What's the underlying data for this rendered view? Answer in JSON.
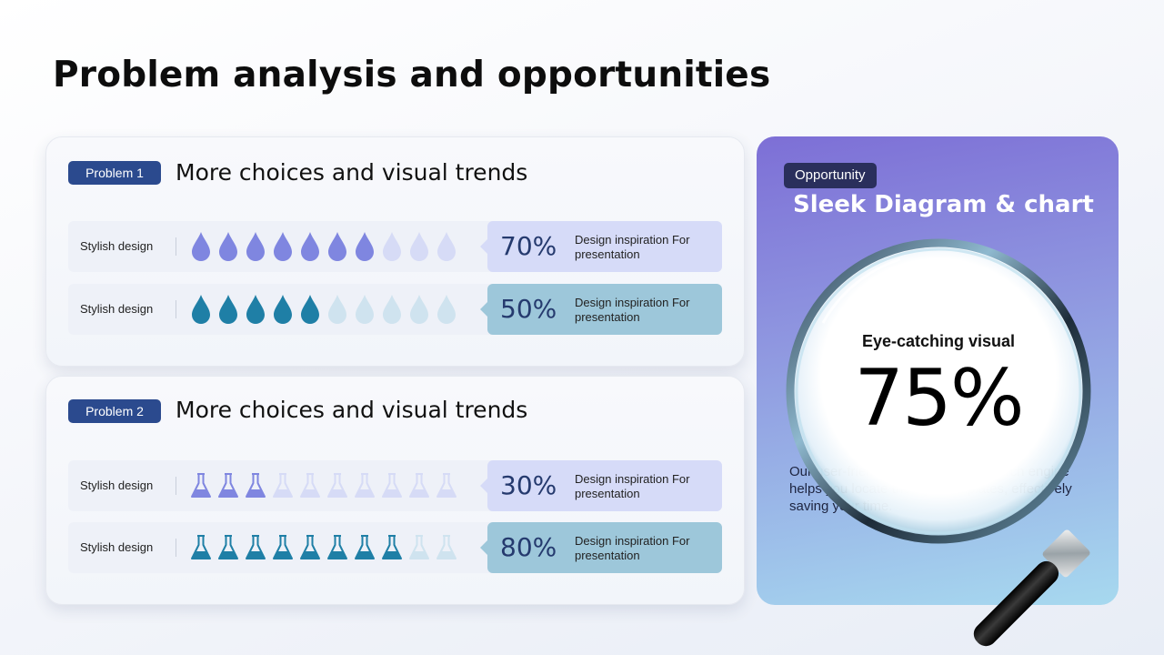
{
  "title": "Problem analysis and opportunities",
  "colors": {
    "tag_bg": "#2b4a8e",
    "drop_purple": "#7f86e0",
    "drop_purple_faded": "#d6dbf6",
    "drop_teal": "#1f7fa6",
    "drop_teal_faded": "#cfe3ef",
    "box_purple": "#d6dbf8",
    "box_teal": "#9dc7da"
  },
  "problems": [
    {
      "tag": "Problem 1",
      "heading": "More choices and visual trends",
      "rows": [
        {
          "label": "Stylish design",
          "icon": "water-drop-icon",
          "filled": 7,
          "total": 10,
          "value": "70%",
          "desc": "Design inspiration For presentation",
          "theme": "purple"
        },
        {
          "label": "Stylish design",
          "icon": "water-drop-icon",
          "filled": 5,
          "total": 10,
          "value": "50%",
          "desc": "Design inspiration For presentation",
          "theme": "teal"
        }
      ]
    },
    {
      "tag": "Problem 2",
      "heading": "More choices and visual trends",
      "rows": [
        {
          "label": "Stylish design",
          "icon": "flask-icon",
          "filled": 3,
          "total": 10,
          "value": "30%",
          "desc": "Design inspiration For presentation",
          "theme": "purple"
        },
        {
          "label": "Stylish design",
          "icon": "flask-icon",
          "filled": 8,
          "total": 10,
          "value": "80%",
          "desc": "Design inspiration For presentation",
          "theme": "teal"
        }
      ]
    }
  ],
  "opportunity": {
    "tag": "Opportunity",
    "heading": "Sleek Diagram & chart",
    "lens_label": "Eye-catching visual",
    "lens_value": "75%",
    "body": "Our user-friendly and functional search engine helps you locate the right templates, effectively saving your time."
  }
}
